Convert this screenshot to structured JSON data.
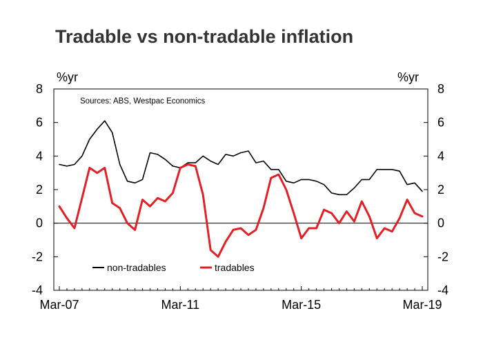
{
  "chart_data": {
    "type": "line",
    "title": "Tradable vs non-tradable inflation",
    "source": "Sources: ABS, Westpac Economics",
    "y_unit_left": "%yr",
    "y_unit_right": "%yr",
    "ylim": [
      -4,
      8
    ],
    "yticks": [
      -4,
      -2,
      0,
      2,
      4,
      6,
      8
    ],
    "yticks_labels": [
      "-4",
      "-2",
      "0",
      "2",
      "4",
      "6",
      "8"
    ],
    "x_tick_labels": [
      "Mar-07",
      "Mar-11",
      "Mar-15",
      "Mar-19"
    ],
    "x_tick_index": [
      0,
      16,
      32,
      48
    ],
    "n_quarters": 49,
    "zero_line": true,
    "legend_placement": "bottom-left",
    "series": [
      {
        "name": "non-tradables",
        "color": "#000000",
        "values": [
          3.5,
          3.4,
          3.5,
          4.0,
          5.0,
          5.6,
          6.1,
          5.4,
          3.5,
          2.5,
          2.4,
          2.6,
          4.2,
          4.1,
          3.8,
          3.4,
          3.3,
          3.6,
          3.6,
          4.0,
          3.7,
          3.5,
          4.1,
          4.0,
          4.2,
          4.3,
          3.6,
          3.7,
          3.2,
          3.2,
          2.5,
          2.4,
          2.6,
          2.6,
          2.5,
          2.3,
          1.8,
          1.7,
          1.7,
          2.1,
          2.6,
          2.6,
          3.2,
          3.2,
          3.2,
          3.1,
          2.3,
          2.4,
          1.9
        ]
      },
      {
        "name": "tradables",
        "color": "#e41f26",
        "values": [
          1.0,
          0.3,
          -0.3,
          1.5,
          3.3,
          3.0,
          3.3,
          1.2,
          0.9,
          0.0,
          -0.4,
          1.4,
          1.0,
          1.5,
          1.3,
          1.8,
          3.3,
          3.5,
          3.4,
          1.7,
          -1.6,
          -2.0,
          -1.1,
          -0.4,
          -0.3,
          -0.7,
          -0.4,
          0.9,
          2.7,
          2.9,
          2.0,
          0.6,
          -0.9,
          -0.3,
          -0.3,
          0.8,
          0.6,
          0.0,
          0.7,
          0.1,
          1.3,
          0.4,
          -0.9,
          -0.3,
          -0.5,
          0.3,
          1.4,
          0.6,
          0.4
        ]
      }
    ]
  }
}
